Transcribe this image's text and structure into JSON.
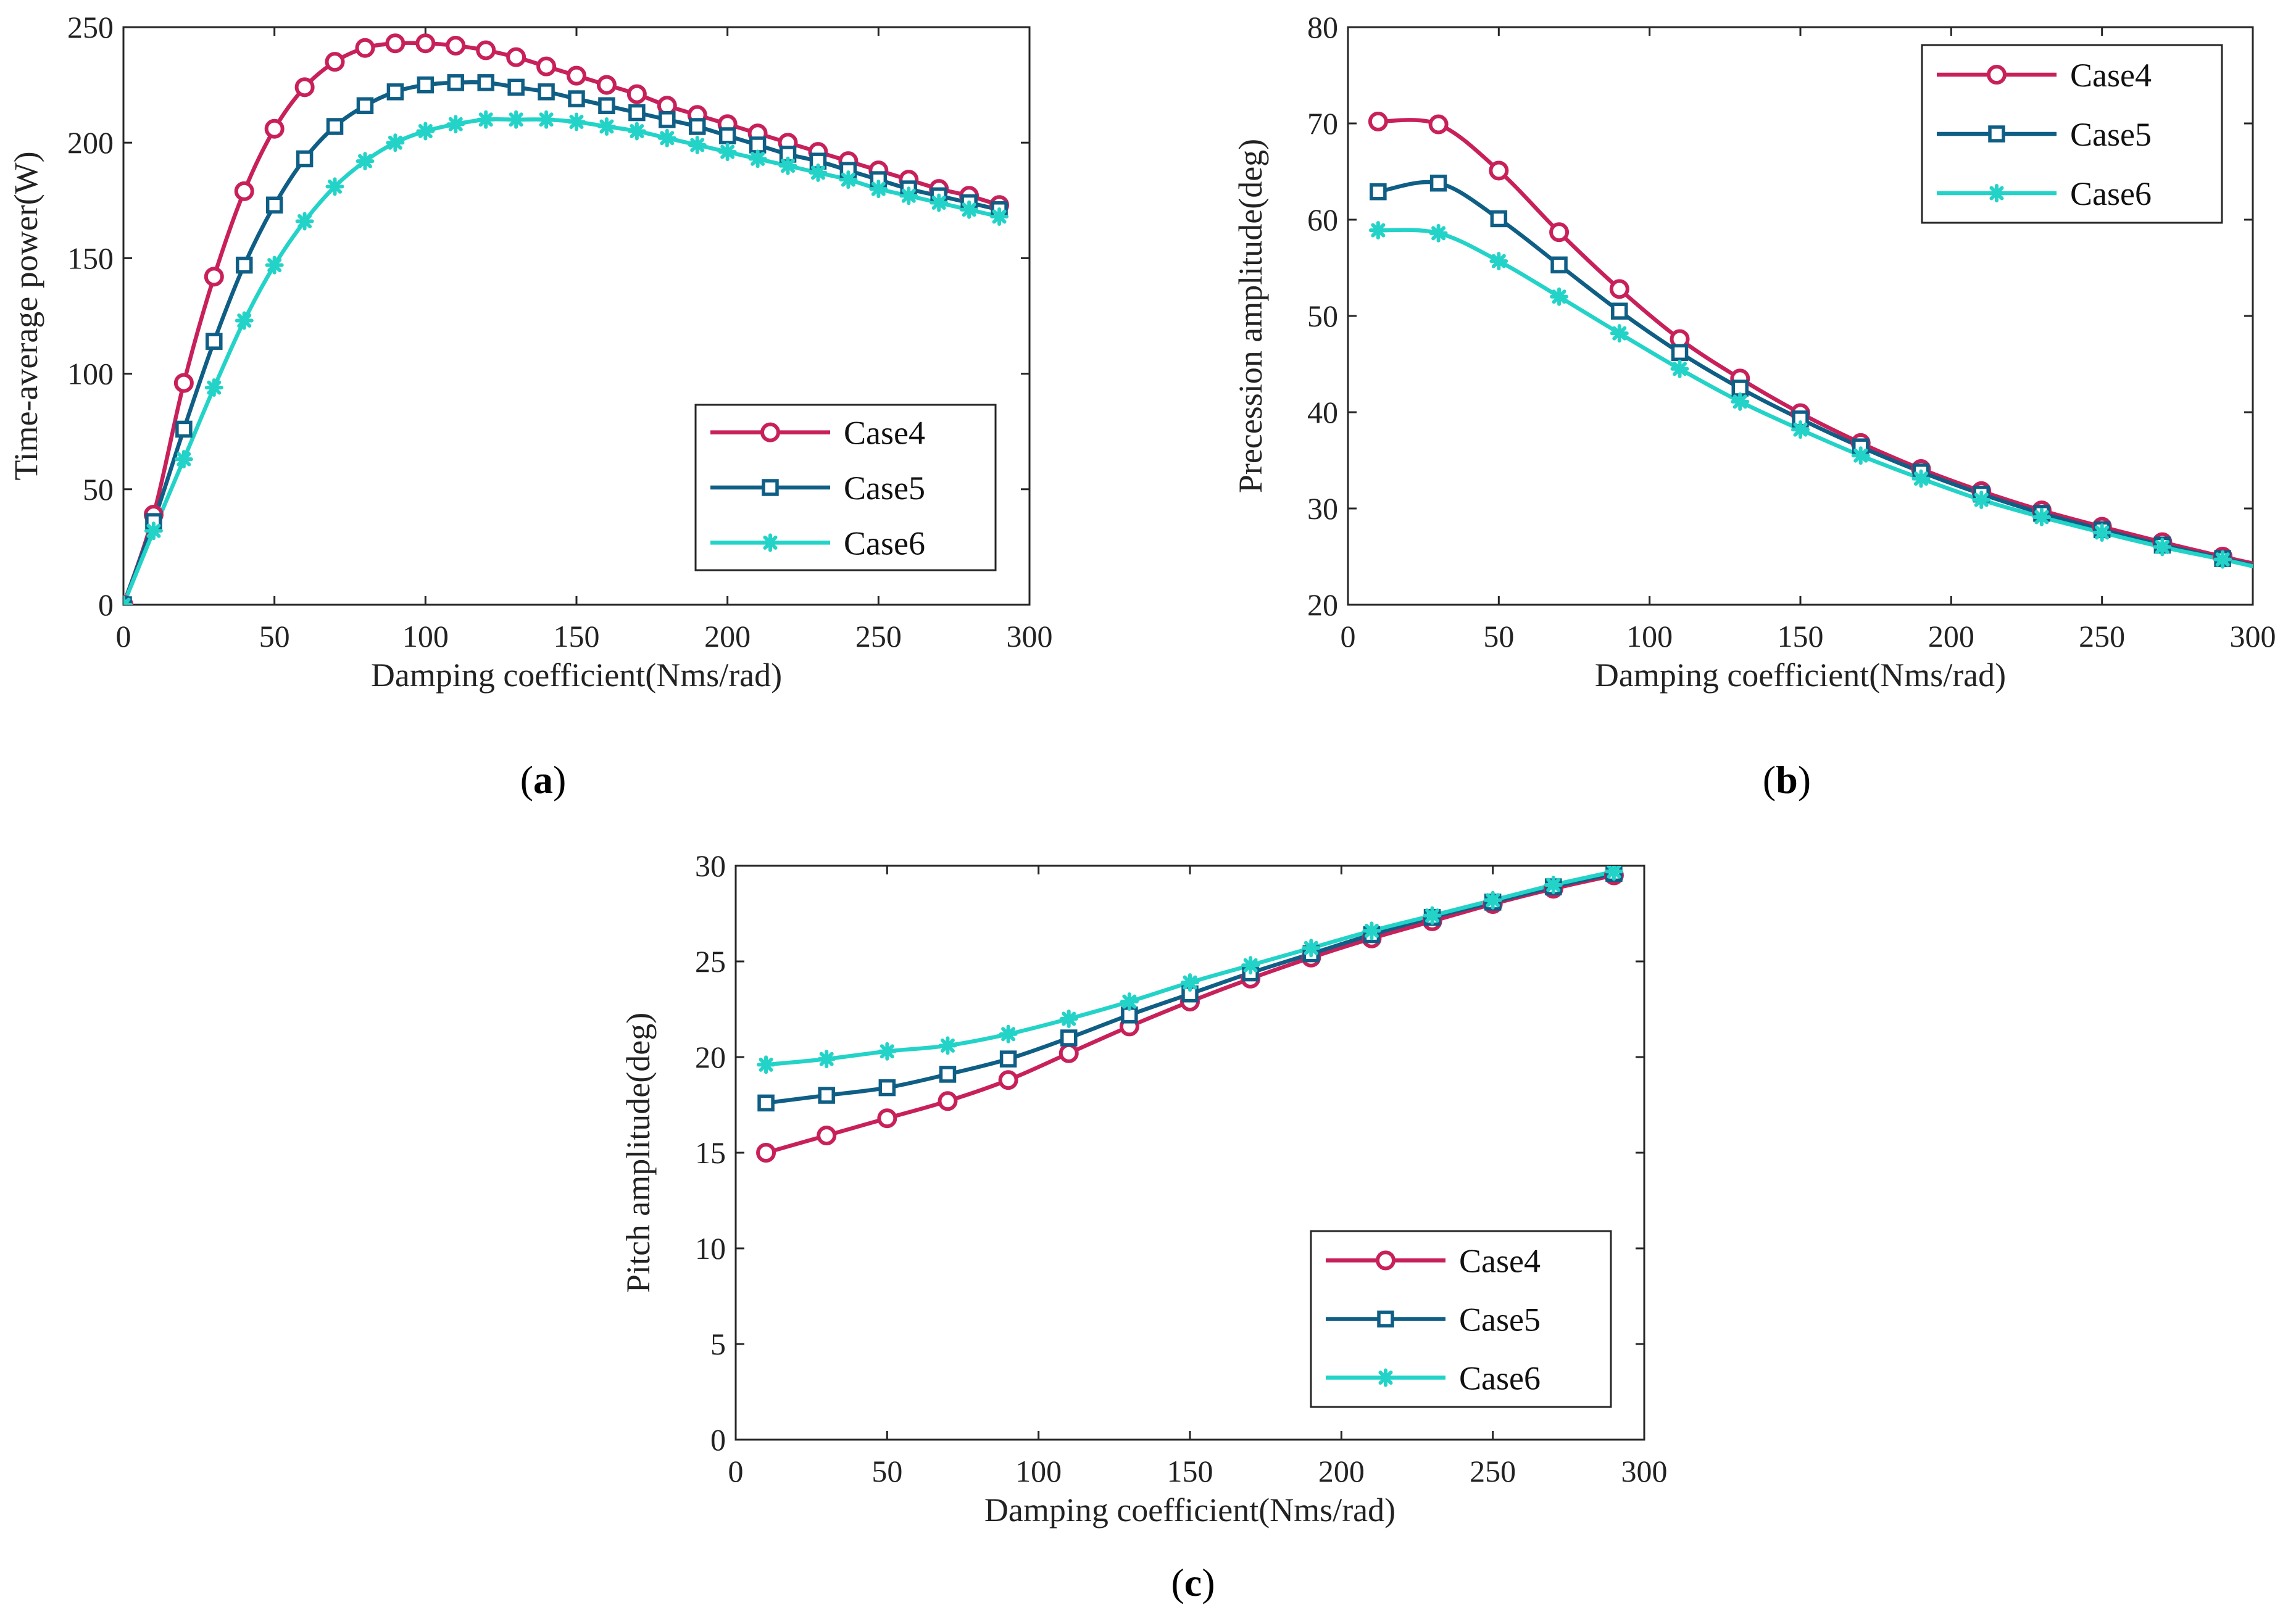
{
  "colors": {
    "case4": "#c8205a",
    "case5": "#0f5e85",
    "case6": "#23d3c8"
  },
  "chart_data": [
    {
      "type": "line",
      "panel_label": "a",
      "xlabel": "Damping coefficient(Nms/rad)",
      "ylabel": "Time-average power(W)",
      "xlim": [
        0,
        300
      ],
      "ylim": [
        0,
        250
      ],
      "xticks": [
        0,
        50,
        100,
        150,
        200,
        250,
        300
      ],
      "yticks": [
        0,
        50,
        100,
        150,
        200,
        250
      ],
      "legend_position": "bottom-right",
      "grid": false,
      "x": [
        0,
        10,
        20,
        30,
        40,
        50,
        60,
        70,
        80,
        90,
        100,
        110,
        120,
        130,
        140,
        150,
        160,
        170,
        180,
        190,
        200,
        210,
        220,
        230,
        240,
        250,
        260,
        270,
        280,
        290
      ],
      "series": [
        {
          "name": "Case4",
          "marker": "circle",
          "color": "#c8205a",
          "values": [
            0,
            39,
            96,
            142,
            179,
            206,
            224,
            235,
            241,
            243,
            243,
            242,
            240,
            237,
            233,
            229,
            225,
            221,
            216,
            212,
            208,
            204,
            200,
            196,
            192,
            188,
            184,
            180,
            177,
            173
          ]
        },
        {
          "name": "Case5",
          "marker": "square",
          "color": "#0f5e85",
          "values": [
            0,
            36,
            76,
            114,
            147,
            173,
            193,
            207,
            216,
            222,
            225,
            226,
            226,
            224,
            222,
            219,
            216,
            213,
            210,
            207,
            203,
            199,
            195,
            192,
            188,
            184,
            180,
            177,
            174,
            171
          ]
        },
        {
          "name": "Case6",
          "marker": "asterisk",
          "color": "#23d3c8",
          "values": [
            0,
            32,
            63,
            94,
            123,
            147,
            166,
            181,
            192,
            200,
            205,
            208,
            210,
            210,
            210,
            209,
            207,
            205,
            202,
            199,
            196,
            193,
            190,
            187,
            184,
            180,
            177,
            174,
            171,
            168
          ]
        }
      ]
    },
    {
      "type": "line",
      "panel_label": "b",
      "xlabel": "Damping coefficient(Nms/rad)",
      "ylabel": "Precession amplitude(deg)",
      "xlim": [
        0,
        300
      ],
      "ylim": [
        20,
        80
      ],
      "xticks": [
        0,
        50,
        100,
        150,
        200,
        250,
        300
      ],
      "yticks": [
        20,
        30,
        40,
        50,
        60,
        70,
        80
      ],
      "legend_position": "top-right",
      "grid": false,
      "x": [
        10,
        30,
        50,
        70,
        90,
        110,
        130,
        150,
        170,
        190,
        210,
        230,
        250,
        270,
        290
      ],
      "x_end": 300,
      "series": [
        {
          "name": "Case4",
          "marker": "circle",
          "color": "#c8205a",
          "values": [
            70.2,
            69.9,
            65.1,
            58.7,
            52.8,
            47.6,
            43.5,
            39.9,
            36.8,
            34.1,
            31.8,
            29.8,
            28.1,
            26.5,
            25.0
          ],
          "end_value": 24.3
        },
        {
          "name": "Case5",
          "marker": "square",
          "color": "#0f5e85",
          "values": [
            62.9,
            63.8,
            60.1,
            55.3,
            50.5,
            46.2,
            42.5,
            39.3,
            36.4,
            33.8,
            31.5,
            29.5,
            27.8,
            26.2,
            24.8
          ],
          "end_value": 24.1
        },
        {
          "name": "Case6",
          "marker": "asterisk",
          "color": "#23d3c8",
          "values": [
            58.9,
            58.6,
            55.7,
            52.0,
            48.2,
            44.5,
            41.1,
            38.2,
            35.5,
            33.1,
            30.9,
            29.1,
            27.5,
            26.0,
            24.7
          ],
          "end_value": 24.0
        }
      ]
    },
    {
      "type": "line",
      "panel_label": "c",
      "xlabel": "Damping coefficient(Nms/rad)",
      "ylabel": "Pitch amplitude(deg)",
      "xlim": [
        0,
        300
      ],
      "ylim": [
        0,
        30
      ],
      "xticks": [
        0,
        50,
        100,
        150,
        200,
        250,
        300
      ],
      "yticks": [
        0,
        5,
        10,
        15,
        20,
        25,
        30
      ],
      "legend_position": "bottom-right",
      "grid": false,
      "x": [
        10,
        30,
        50,
        70,
        90,
        110,
        130,
        150,
        170,
        190,
        210,
        230,
        250,
        270,
        290
      ],
      "series": [
        {
          "name": "Case4",
          "marker": "circle",
          "color": "#c8205a",
          "values": [
            15.0,
            15.9,
            16.8,
            17.7,
            18.8,
            20.2,
            21.6,
            22.9,
            24.1,
            25.2,
            26.2,
            27.1,
            28.0,
            28.8,
            29.5
          ]
        },
        {
          "name": "Case5",
          "marker": "square",
          "color": "#0f5e85",
          "values": [
            17.6,
            18.0,
            18.4,
            19.1,
            19.9,
            21.0,
            22.2,
            23.3,
            24.4,
            25.4,
            26.4,
            27.3,
            28.1,
            28.9,
            29.6
          ]
        },
        {
          "name": "Case6",
          "marker": "asterisk",
          "color": "#23d3c8",
          "values": [
            19.6,
            19.9,
            20.3,
            20.6,
            21.2,
            22.0,
            22.9,
            23.9,
            24.8,
            25.7,
            26.6,
            27.4,
            28.2,
            29.0,
            29.7
          ]
        }
      ]
    }
  ]
}
